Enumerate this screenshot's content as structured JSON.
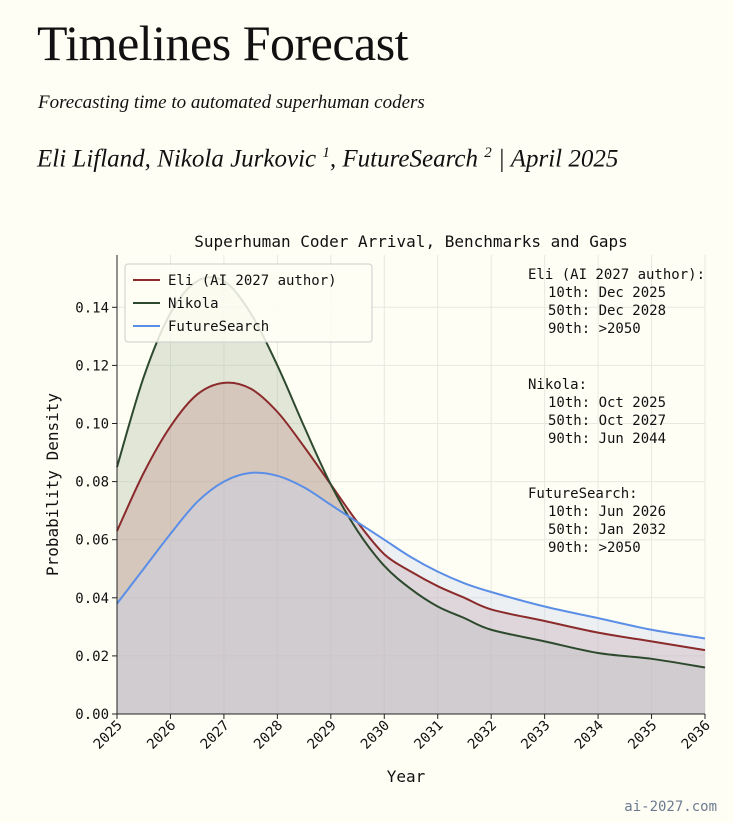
{
  "page": {
    "title": "Timelines Forecast",
    "subtitle": "Forecasting time to automated superhuman coders",
    "authors": {
      "author1": "Eli Lifland",
      "author2": "Nikola Jurkovic",
      "sup2": "1",
      "author3": "FutureSearch",
      "sup3": "2",
      "separator": "|",
      "date": "April 2025"
    },
    "watermark": "ai-2027.com"
  },
  "chart_data": {
    "type": "area",
    "title": "Superhuman Coder Arrival, Benchmarks and Gaps",
    "xlabel": "Year",
    "ylabel": "Probability Density",
    "xlim": [
      2025,
      2036
    ],
    "ylim": [
      0,
      0.158
    ],
    "x_ticks": [
      2025,
      2026,
      2027,
      2028,
      2029,
      2030,
      2031,
      2032,
      2033,
      2034,
      2035,
      2036
    ],
    "y_ticks": [
      0.0,
      0.02,
      0.04,
      0.06,
      0.08,
      0.1,
      0.12,
      0.14
    ],
    "y_tick_labels": [
      "0.00",
      "0.02",
      "0.04",
      "0.06",
      "0.08",
      "0.10",
      "0.12",
      "0.14"
    ],
    "grid": true,
    "legend_position": "top-left",
    "series": [
      {
        "name": "Eli (AI 2027 author)",
        "color": "#8b2b2b",
        "fill": "#c48c8c",
        "x": [
          2025,
          2025.5,
          2026,
          2026.5,
          2027,
          2027.5,
          2028,
          2028.5,
          2029,
          2029.5,
          2030,
          2030.5,
          2031,
          2031.5,
          2032,
          2033,
          2034,
          2035,
          2036
        ],
        "y": [
          0.063,
          0.083,
          0.099,
          0.11,
          0.114,
          0.112,
          0.104,
          0.092,
          0.079,
          0.066,
          0.055,
          0.049,
          0.044,
          0.04,
          0.036,
          0.032,
          0.028,
          0.025,
          0.022
        ]
      },
      {
        "name": "Nikola",
        "color": "#2e4a2e",
        "fill": "#a8b9a0",
        "x": [
          2025,
          2025.5,
          2026,
          2026.5,
          2027,
          2027.5,
          2028,
          2028.5,
          2029,
          2029.5,
          2030,
          2030.5,
          2031,
          2031.5,
          2032,
          2033,
          2034,
          2035,
          2036
        ],
        "y": [
          0.085,
          0.116,
          0.138,
          0.149,
          0.149,
          0.138,
          0.12,
          0.099,
          0.079,
          0.063,
          0.051,
          0.043,
          0.037,
          0.033,
          0.029,
          0.025,
          0.021,
          0.019,
          0.016
        ]
      },
      {
        "name": "FutureSearch",
        "color": "#5b8ee6",
        "fill": "#c9d6f0",
        "x": [
          2025,
          2025.5,
          2026,
          2026.5,
          2027,
          2027.5,
          2028,
          2028.5,
          2029,
          2029.5,
          2030,
          2030.5,
          2031,
          2031.5,
          2032,
          2033,
          2034,
          2035,
          2036
        ],
        "y": [
          0.038,
          0.05,
          0.062,
          0.073,
          0.08,
          0.083,
          0.082,
          0.078,
          0.072,
          0.066,
          0.06,
          0.054,
          0.049,
          0.045,
          0.042,
          0.037,
          0.033,
          0.029,
          0.026
        ]
      }
    ],
    "annotations": [
      {
        "header": "Eli (AI 2027 author):",
        "lines": [
          "10th: Dec 2025",
          "50th: Dec 2028",
          "90th: >2050"
        ]
      },
      {
        "header": "Nikola:",
        "lines": [
          "10th: Oct 2025",
          "50th: Oct 2027",
          "90th: Jun 2044"
        ]
      },
      {
        "header": "FutureSearch:",
        "lines": [
          "10th: Jun 2026",
          "50th: Jan 2032",
          "90th: >2050"
        ]
      }
    ]
  }
}
